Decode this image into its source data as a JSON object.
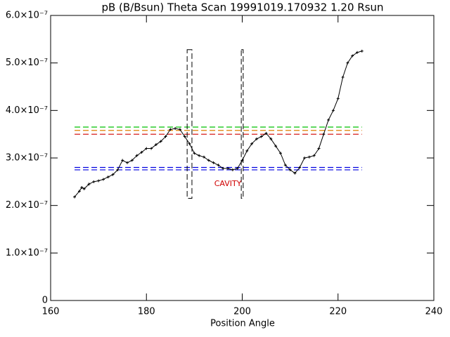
{
  "chart_data": {
    "type": "line",
    "title": "pB (B/Bsun) Theta Scan 19991019.170932 1.20 Rsun",
    "x_label": "Position Angle",
    "xlim": [
      160,
      240
    ],
    "xticks": [
      160,
      180,
      200,
      220,
      240
    ],
    "ylim": [
      0,
      6e-07
    ],
    "yticks": [
      0,
      {
        "value": 1e-07,
        "label": "1.0×10⁻⁷"
      },
      {
        "value": 2e-07,
        "label": "2.0×10⁻⁷"
      },
      {
        "value": 3e-07,
        "label": "3.0×10⁻⁷"
      },
      {
        "value": 4e-07,
        "label": "4.0×10⁻⁷"
      },
      {
        "value": 5e-07,
        "label": "5.0×10⁻⁷"
      },
      {
        "value": 6e-07,
        "label": "6.0×10⁻⁷"
      }
    ],
    "color": "#000000",
    "x": [
      165,
      166,
      166.5,
      167,
      168,
      169,
      170,
      171,
      172,
      173,
      174,
      175,
      176,
      177,
      178,
      179,
      180,
      181,
      182,
      183,
      184,
      185,
      186,
      187,
      188,
      189,
      190,
      191,
      192,
      193,
      194,
      195,
      196,
      197,
      198,
      199,
      200,
      201,
      202,
      203,
      204,
      205,
      206,
      207,
      208,
      209,
      210,
      211,
      212,
      213,
      214,
      215,
      216,
      217,
      218,
      219,
      220,
      221,
      222,
      223,
      224,
      225
    ],
    "values": [
      2.18e-07,
      2.3e-07,
      2.38e-07,
      2.35e-07,
      2.45e-07,
      2.5e-07,
      2.52e-07,
      2.55e-07,
      2.6e-07,
      2.65e-07,
      2.75e-07,
      2.95e-07,
      2.9e-07,
      2.95e-07,
      3.05e-07,
      3.12e-07,
      3.2e-07,
      3.2e-07,
      3.28e-07,
      3.35e-07,
      3.45e-07,
      3.6e-07,
      3.62e-07,
      3.6e-07,
      3.45e-07,
      3.3e-07,
      3.1e-07,
      3.05e-07,
      3.02e-07,
      2.95e-07,
      2.9e-07,
      2.85e-07,
      2.78e-07,
      2.78e-07,
      2.75e-07,
      2.78e-07,
      2.95e-07,
      3.15e-07,
      3.3e-07,
      3.4e-07,
      3.45e-07,
      3.52e-07,
      3.4e-07,
      3.25e-07,
      3.1e-07,
      2.85e-07,
      2.75e-07,
      2.68e-07,
      2.8e-07,
      3e-07,
      3.02e-07,
      3.05e-07,
      3.2e-07,
      3.5e-07,
      3.8e-07,
      4e-07,
      4.25e-07,
      4.7e-07,
      5e-07,
      5.15e-07,
      5.22e-07,
      5.25e-07
    ],
    "reference_lines": [
      {
        "y": 3.65e-07,
        "x": [
          165,
          225
        ],
        "color": "#00c000"
      },
      {
        "y": 3.58e-07,
        "x": [
          165,
          225
        ],
        "color": "#e08000"
      },
      {
        "y": 3.5e-07,
        "x": [
          165,
          225
        ],
        "color": "#d00000"
      },
      {
        "y": 2.8e-07,
        "x": [
          165,
          225
        ],
        "color": "#0000e0"
      },
      {
        "y": 2.75e-07,
        "x": [
          165,
          225
        ],
        "color": "#0000e0"
      }
    ],
    "regions": [
      {
        "x": [
          188.5,
          189.5
        ],
        "y": [
          2.15e-07,
          5.28e-07
        ]
      },
      {
        "x": [
          199.8,
          200.2
        ],
        "y": [
          2.15e-07,
          5.28e-07
        ]
      }
    ],
    "annotation": {
      "text": "CAVITY",
      "x": 197,
      "y": 2.45e-07,
      "color": "#d00000"
    }
  }
}
